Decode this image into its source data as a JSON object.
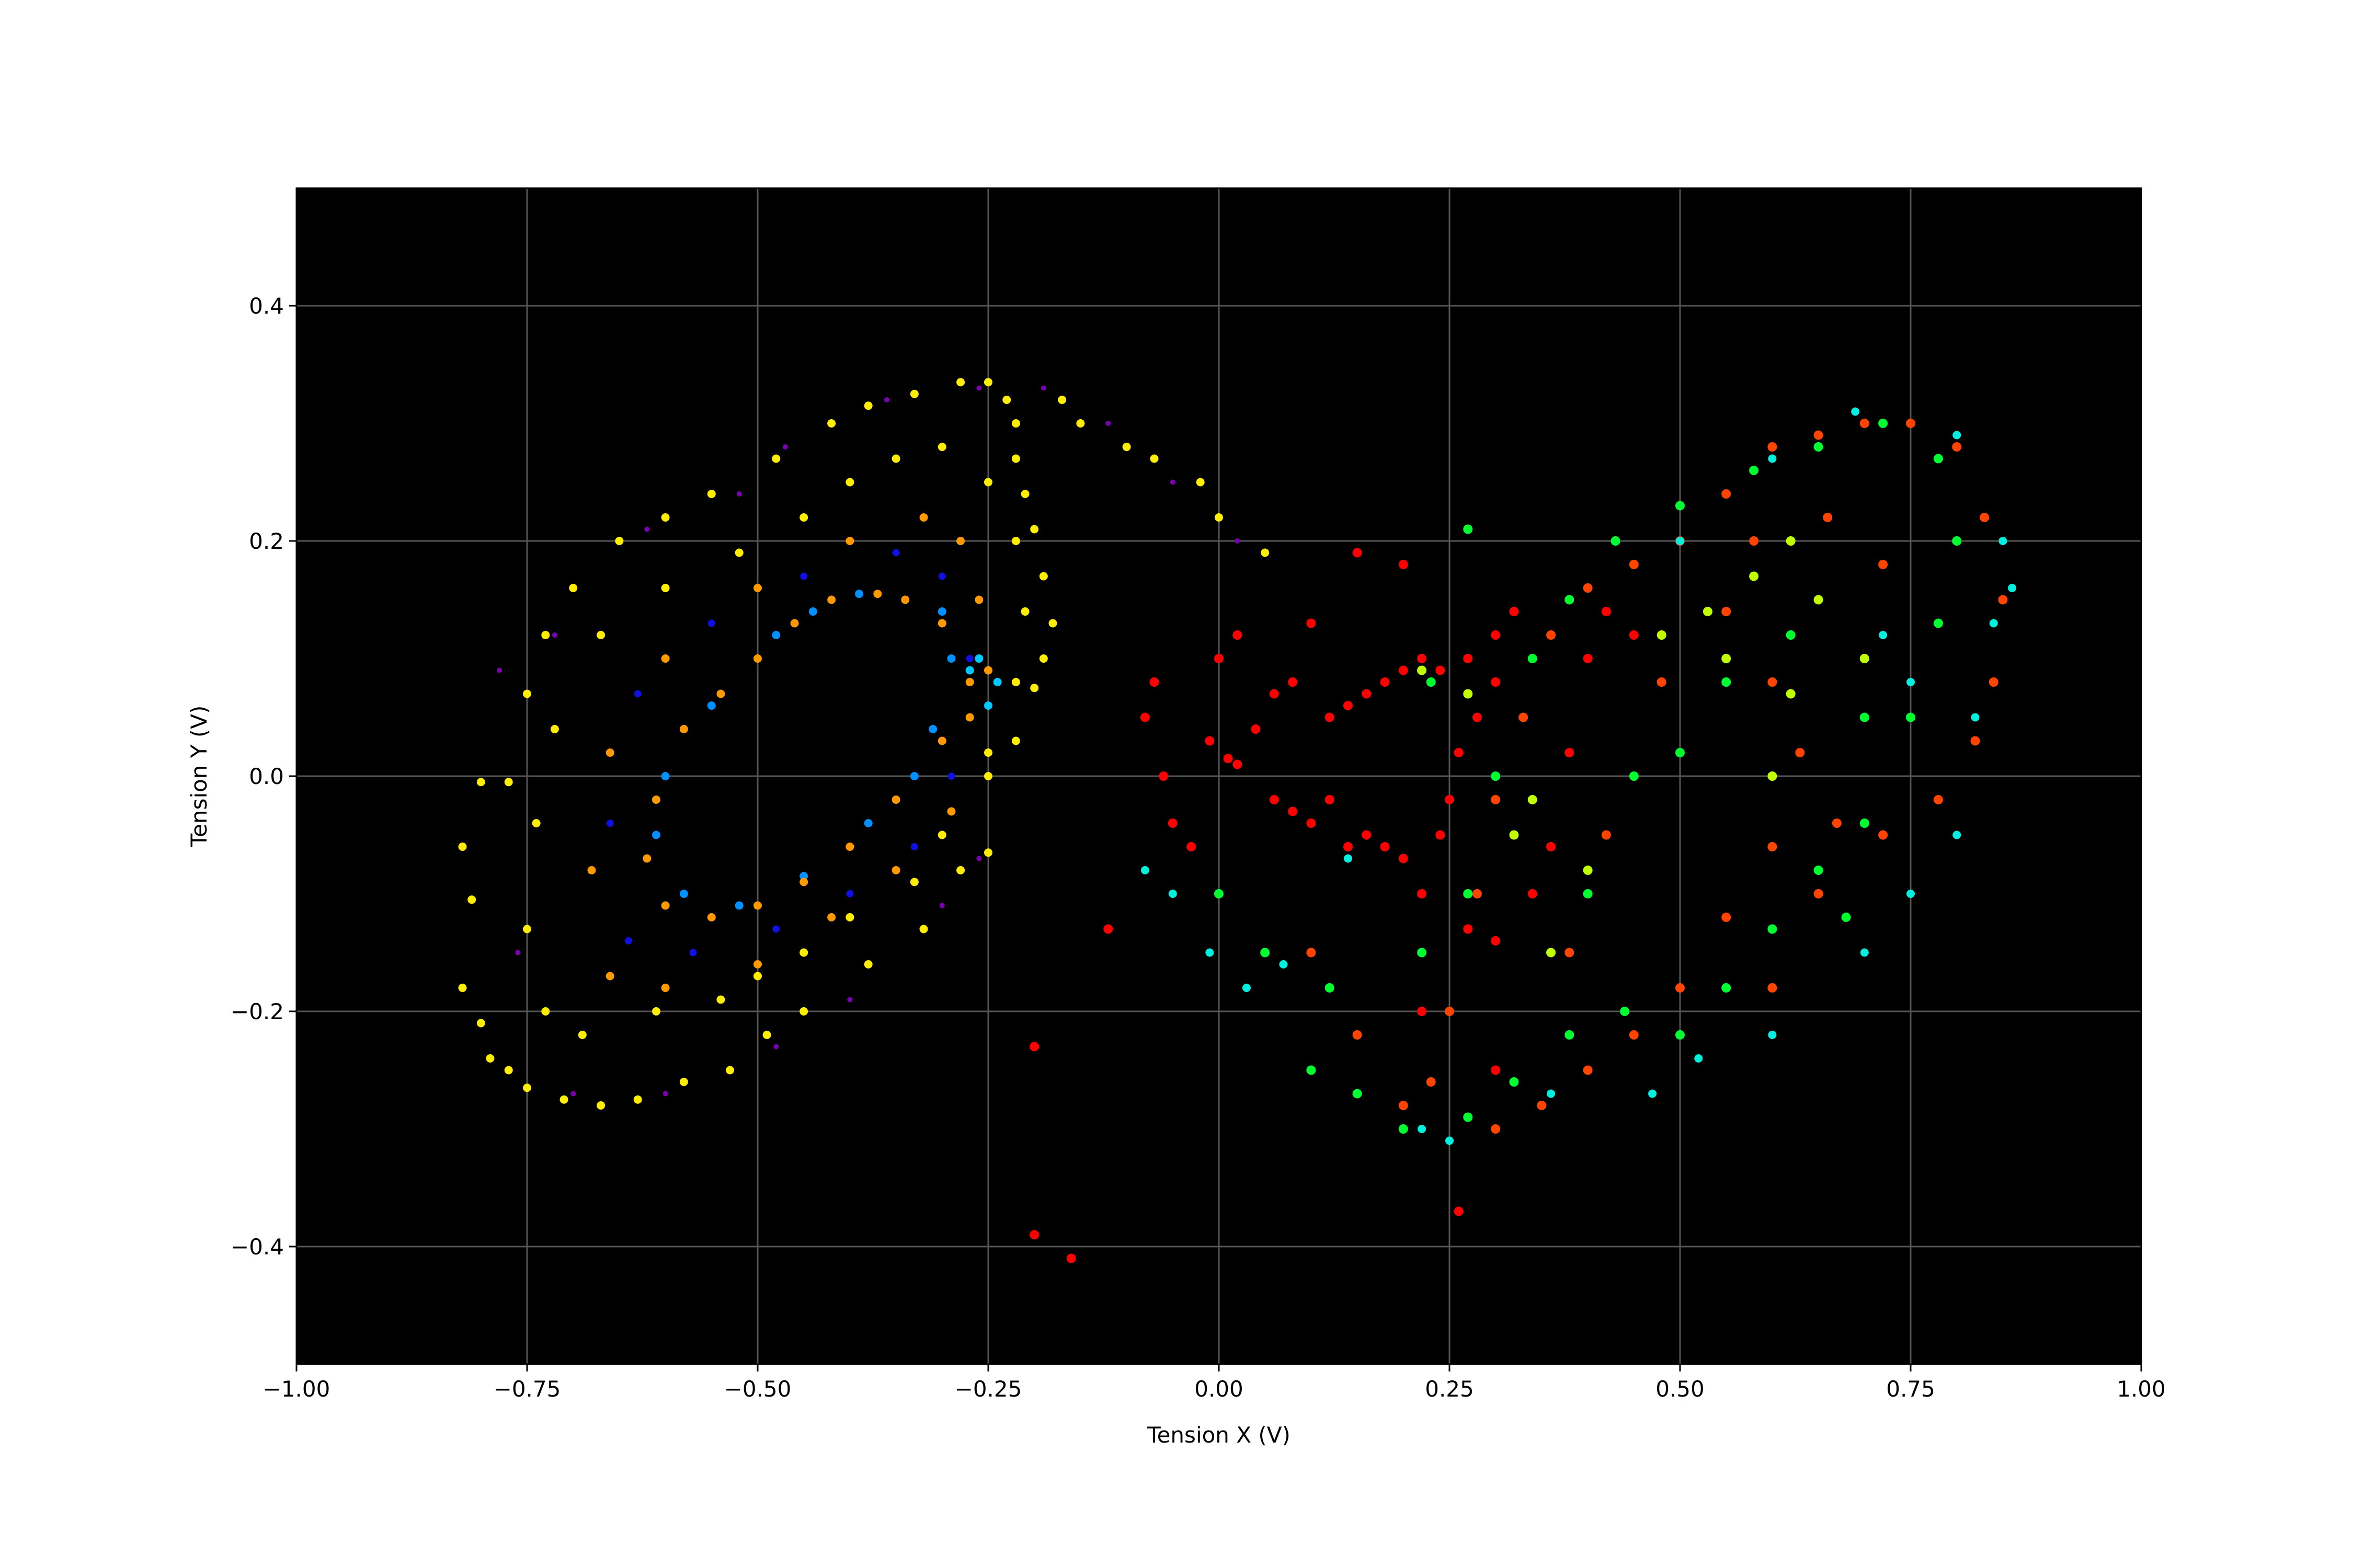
{
  "chart_data": {
    "type": "scatter",
    "x_label": "Tension X (V)",
    "y_label": "Tension Y (V)",
    "xlim": [
      -1,
      1
    ],
    "ylim": [
      -0.5,
      0.5
    ],
    "xticks": [
      {
        "value": -1,
        "label": "−1.00"
      },
      {
        "value": -0.75,
        "label": "−0.75"
      },
      {
        "value": -0.5,
        "label": "−0.50"
      },
      {
        "value": -0.25,
        "label": "−0.25"
      },
      {
        "value": 0,
        "label": "0.00"
      },
      0.25,
      {
        "value": 0.5,
        "label": "0.50"
      },
      0.75,
      {
        "value": 1,
        "label": "1.00"
      }
    ],
    "yticks": [
      {
        "value": -0.4,
        "label": "−0.4"
      },
      {
        "value": -0.2,
        "label": "−0.2"
      },
      {
        "value": 0,
        "label": "0.0"
      },
      0.2,
      0.4
    ],
    "grid": true,
    "background": "#000000",
    "series": [
      {
        "color": "#7a00b0",
        "marker_size": 5,
        "x": [
          -0.78,
          -0.76,
          -0.7,
          -0.6,
          -0.48,
          -0.4,
          -0.3,
          -0.26,
          -0.19,
          -0.26,
          -0.36,
          -0.47,
          -0.52,
          -0.62,
          -0.72,
          -0.12,
          -0.05,
          0.02
        ],
        "y": [
          0.09,
          -0.15,
          -0.27,
          -0.27,
          -0.23,
          -0.19,
          -0.11,
          -0.07,
          0.33,
          0.33,
          0.32,
          0.28,
          0.24,
          0.21,
          0.12,
          0.3,
          0.25,
          0.2
        ]
      },
      {
        "color": "#1010e0",
        "marker_size": 7,
        "x": [
          -0.35,
          -0.45,
          -0.55,
          -0.63,
          -0.66,
          -0.64,
          -0.57,
          -0.48,
          -0.4,
          -0.33,
          -0.29,
          -0.27,
          -0.3
        ],
        "y": [
          0.19,
          0.17,
          0.13,
          0.07,
          -0.04,
          -0.14,
          -0.15,
          -0.13,
          -0.1,
          -0.06,
          0.0,
          0.1,
          0.17
        ]
      },
      {
        "color": "#0090ff",
        "marker_size": 8,
        "x": [
          -0.39,
          -0.44,
          -0.48,
          -0.55,
          -0.6,
          -0.61,
          -0.58,
          -0.52,
          -0.45,
          -0.38,
          -0.33,
          -0.31,
          -0.29,
          -0.3
        ],
        "y": [
          0.155,
          0.14,
          0.12,
          0.06,
          0.0,
          -0.05,
          -0.1,
          -0.11,
          -0.085,
          -0.04,
          0.0,
          0.04,
          0.1,
          0.14
        ]
      },
      {
        "color": "#00c8ff",
        "marker_size": 8,
        "x": [
          -0.26,
          -0.24,
          -0.27,
          -0.25
        ],
        "y": [
          0.1,
          0.08,
          0.09,
          0.06
        ]
      },
      {
        "color": "#ff9900",
        "marker_size": 8,
        "x": [
          -0.37,
          -0.42,
          -0.46,
          -0.5,
          -0.54,
          -0.58,
          -0.61,
          -0.62,
          -0.6,
          -0.55,
          -0.5,
          -0.45,
          -0.4,
          -0.35,
          -0.3,
          -0.27,
          -0.25,
          -0.3,
          -0.34,
          -0.32,
          -0.4,
          -0.5,
          -0.6,
          -0.66,
          -0.68,
          -0.66,
          -0.6,
          -0.5,
          -0.42,
          -0.35,
          -0.29,
          -0.27,
          -0.26,
          -0.28
        ],
        "y": [
          0.155,
          0.15,
          0.13,
          0.1,
          0.07,
          0.04,
          -0.02,
          -0.07,
          -0.11,
          -0.12,
          -0.11,
          -0.09,
          -0.06,
          -0.02,
          0.03,
          0.08,
          0.09,
          0.13,
          0.15,
          0.22,
          0.2,
          0.16,
          0.1,
          0.02,
          -0.08,
          -0.17,
          -0.18,
          -0.16,
          -0.12,
          -0.08,
          -0.03,
          0.05,
          0.15,
          0.2
        ]
      },
      {
        "color": "#ffee00",
        "marker_size": 8,
        "x": [
          -0.82,
          -0.81,
          -0.82,
          -0.8,
          -0.79,
          -0.77,
          -0.75,
          -0.71,
          -0.67,
          -0.63,
          -0.58,
          -0.53,
          -0.49,
          -0.45,
          -0.38,
          -0.32,
          -0.28,
          -0.25,
          -0.25,
          -0.22,
          -0.2,
          -0.19,
          -0.18,
          -0.19,
          -0.2,
          -0.21,
          -0.22,
          -0.22,
          -0.23,
          -0.25,
          -0.28,
          -0.33,
          -0.38,
          -0.42,
          -0.48,
          -0.55,
          -0.6,
          -0.65,
          -0.7,
          -0.73,
          -0.75,
          -0.8,
          -0.77,
          -0.17,
          -0.15,
          -0.1,
          -0.07,
          -0.02,
          0.0,
          0.05,
          -0.3,
          -0.35,
          -0.4,
          -0.45,
          -0.52,
          -0.6,
          -0.67,
          -0.72,
          -0.74,
          -0.75,
          -0.73,
          -0.69,
          -0.61,
          -0.54,
          -0.5,
          -0.45,
          -0.4,
          -0.33,
          -0.3,
          -0.25,
          -0.22,
          -0.21,
          -0.22,
          -0.25
        ],
        "y": [
          -0.06,
          -0.105,
          -0.18,
          -0.21,
          -0.24,
          -0.25,
          -0.265,
          -0.275,
          -0.28,
          -0.275,
          -0.26,
          -0.25,
          -0.22,
          -0.2,
          -0.16,
          -0.13,
          -0.08,
          -0.065,
          0.0,
          0.03,
          0.075,
          0.1,
          0.13,
          0.17,
          0.21,
          0.24,
          0.27,
          0.3,
          0.32,
          0.335,
          0.335,
          0.325,
          0.315,
          0.3,
          0.27,
          0.24,
          0.22,
          0.2,
          0.16,
          0.12,
          0.07,
          -0.005,
          -0.005,
          0.32,
          0.3,
          0.28,
          0.27,
          0.25,
          0.22,
          0.19,
          0.28,
          0.27,
          0.25,
          0.22,
          0.19,
          0.16,
          0.12,
          0.04,
          -0.04,
          -0.13,
          -0.2,
          -0.22,
          -0.2,
          -0.19,
          -0.17,
          -0.15,
          -0.12,
          -0.09,
          -0.05,
          0.02,
          0.08,
          0.14,
          0.2,
          0.25
        ]
      },
      {
        "color": "#ff0000",
        "marker_size": 9,
        "x": [
          -0.07,
          -0.08,
          -0.06,
          -0.05,
          -0.03,
          -0.01,
          0.0,
          0.02,
          0.01,
          0.02,
          0.04,
          0.06,
          0.08,
          0.06,
          0.08,
          0.1,
          0.12,
          0.12,
          0.14,
          0.16,
          0.18,
          0.2,
          0.22,
          0.24,
          0.27,
          0.3,
          0.32,
          0.3,
          0.28,
          0.26,
          0.25,
          0.24,
          0.2,
          0.18,
          0.16,
          0.14,
          0.22,
          0.27,
          0.3,
          0.34,
          0.36,
          0.38,
          0.4,
          0.42,
          0.45,
          -0.12,
          -0.2,
          -0.2,
          -0.16,
          0.26,
          0.2,
          0.1,
          0.15,
          0.22,
          0.3
        ],
        "y": [
          0.08,
          0.05,
          0.0,
          -0.04,
          -0.06,
          0.03,
          0.1,
          0.12,
          0.015,
          0.01,
          0.04,
          0.07,
          0.08,
          -0.02,
          -0.03,
          -0.04,
          -0.02,
          0.05,
          0.06,
          0.07,
          0.08,
          0.09,
          0.1,
          0.09,
          0.1,
          0.12,
          0.14,
          0.08,
          0.05,
          0.02,
          -0.02,
          -0.05,
          -0.07,
          -0.06,
          -0.05,
          -0.06,
          -0.1,
          -0.13,
          -0.14,
          -0.1,
          -0.06,
          0.02,
          0.1,
          0.14,
          0.12,
          -0.13,
          -0.23,
          -0.39,
          -0.41,
          -0.37,
          0.18,
          0.13,
          0.19,
          -0.2,
          -0.25
        ]
      },
      {
        "color": "#ff4400",
        "marker_size": 9,
        "x": [
          0.55,
          0.6,
          0.65,
          0.7,
          0.75,
          0.8,
          0.83,
          0.85,
          0.84,
          0.82,
          0.78,
          0.72,
          0.67,
          0.63,
          0.6,
          0.55,
          0.5,
          0.45,
          0.4,
          0.36,
          0.33,
          0.3,
          0.28,
          0.25,
          0.23,
          0.3,
          0.35,
          0.4,
          0.45,
          0.5,
          0.55,
          0.6,
          0.7,
          0.72,
          0.66,
          0.58,
          0.48,
          0.42,
          0.38,
          0.2,
          0.15,
          0.1,
          0.6,
          0.65
        ],
        "y": [
          0.24,
          0.28,
          0.29,
          0.3,
          0.3,
          0.28,
          0.22,
          0.15,
          0.08,
          0.03,
          -0.02,
          -0.05,
          -0.04,
          0.02,
          0.08,
          0.14,
          0.2,
          0.18,
          0.16,
          0.12,
          0.05,
          -0.02,
          -0.1,
          -0.2,
          -0.26,
          -0.3,
          -0.28,
          -0.25,
          -0.22,
          -0.18,
          -0.12,
          -0.06,
          0.1,
          0.18,
          0.22,
          0.2,
          0.08,
          -0.05,
          -0.15,
          -0.28,
          -0.22,
          -0.15,
          -0.18,
          -0.1
        ]
      },
      {
        "color": "#00ff30",
        "marker_size": 9,
        "x": [
          0.1,
          0.15,
          0.2,
          0.27,
          0.32,
          0.38,
          0.44,
          0.5,
          0.55,
          0.6,
          0.65,
          0.7,
          0.75,
          0.78,
          0.8,
          0.78,
          0.72,
          0.65,
          0.58,
          0.5,
          0.43,
          0.38,
          0.34,
          0.3,
          0.27,
          0.22,
          0.12,
          0.05,
          0.0,
          0.5,
          0.55,
          0.62,
          0.7,
          0.68,
          0.4,
          0.45,
          0.27,
          0.23
        ],
        "y": [
          -0.25,
          -0.27,
          -0.3,
          -0.29,
          -0.26,
          -0.22,
          -0.2,
          -0.22,
          -0.18,
          -0.13,
          -0.08,
          -0.04,
          0.05,
          0.13,
          0.2,
          0.27,
          0.3,
          0.28,
          0.26,
          0.23,
          0.2,
          0.15,
          0.1,
          0.0,
          -0.1,
          -0.15,
          -0.18,
          -0.15,
          -0.1,
          0.02,
          0.08,
          0.12,
          0.05,
          -0.12,
          -0.1,
          0.0,
          0.21,
          0.08
        ]
      },
      {
        "color": "#00f0e0",
        "marker_size": 8,
        "x": [
          0.25,
          0.22,
          0.36,
          0.47,
          0.52,
          0.6,
          0.7,
          0.75,
          0.8,
          0.82,
          0.84,
          0.85,
          0.86,
          0.8,
          0.69,
          0.6,
          0.5,
          -0.05,
          -0.01,
          0.03,
          0.07,
          -0.08,
          0.14,
          0.75,
          0.72
        ],
        "y": [
          -0.31,
          -0.3,
          -0.27,
          -0.27,
          -0.24,
          -0.22,
          -0.15,
          -0.1,
          -0.05,
          0.05,
          0.13,
          0.2,
          0.16,
          0.29,
          0.31,
          0.27,
          0.2,
          -0.1,
          -0.15,
          -0.18,
          -0.16,
          -0.08,
          -0.07,
          0.08,
          0.12
        ]
      },
      {
        "color": "#c0ff00",
        "marker_size": 9,
        "x": [
          0.22,
          0.27,
          0.32,
          0.34,
          0.62,
          0.65,
          0.7,
          0.58,
          0.53,
          0.48,
          0.62,
          0.6,
          0.4,
          0.36,
          0.55
        ],
        "y": [
          0.09,
          0.07,
          -0.05,
          -0.02,
          0.2,
          0.15,
          0.1,
          0.17,
          0.14,
          0.12,
          0.07,
          0.0,
          -0.08,
          -0.15,
          0.1
        ]
      }
    ]
  }
}
